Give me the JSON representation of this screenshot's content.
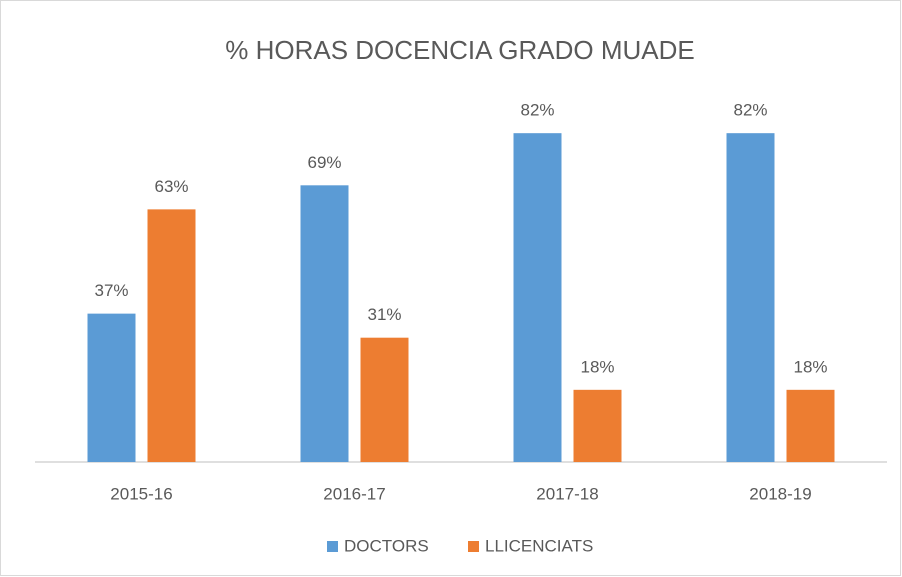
{
  "chart_data": {
    "type": "bar",
    "title": "% HORAS DOCENCIA GRADO MUADE",
    "categories": [
      "2015-16",
      "2016-17",
      "2017-18",
      "2018-19"
    ],
    "series": [
      {
        "name": "DOCTORS",
        "color": "#5b9bd5",
        "values": [
          37,
          69,
          82,
          82
        ],
        "value_labels": [
          "37%",
          "69%",
          "82%",
          "82%"
        ]
      },
      {
        "name": "LLICENCIATS",
        "color": "#ed7d31",
        "values": [
          63,
          31,
          18,
          18
        ],
        "value_labels": [
          "63%",
          "31%",
          "18%",
          "18%"
        ]
      }
    ],
    "legend": "bottom"
  }
}
